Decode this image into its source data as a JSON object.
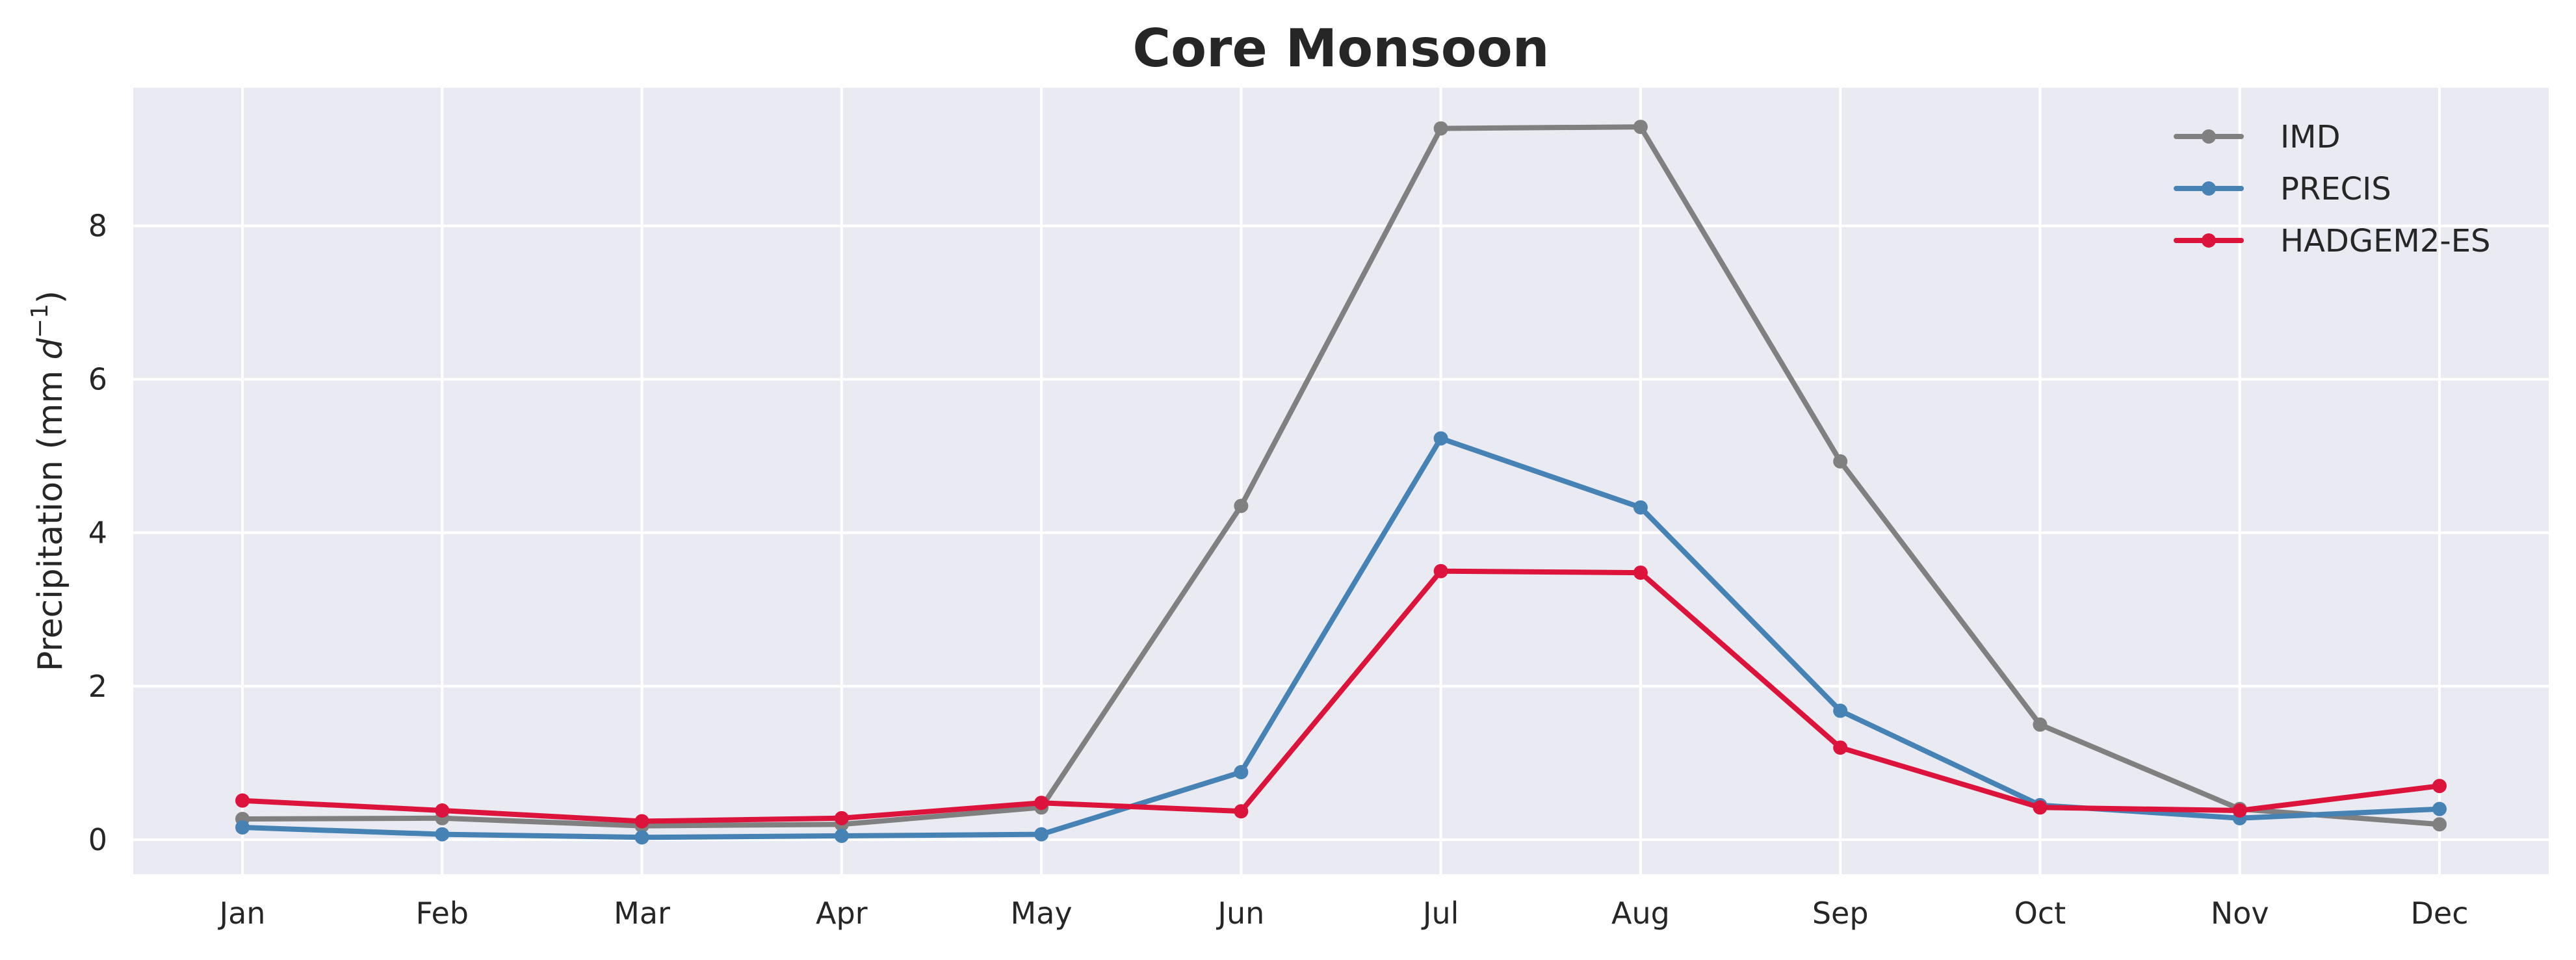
{
  "chart_data": {
    "type": "line",
    "title": "Core Monsoon",
    "xlabel": "",
    "ylabel": "Precipitation (mm d⁻¹)",
    "ylabel_base": "Precipitation (mm ",
    "ylabel_var": "d",
    "ylabel_exp": "−1",
    "ylabel_close": ")",
    "categories": [
      "Jan",
      "Feb",
      "Mar",
      "Apr",
      "May",
      "Jun",
      "Jul",
      "Aug",
      "Sep",
      "Oct",
      "Nov",
      "Dec"
    ],
    "ylim": [
      -0.45,
      9.8
    ],
    "yticks": [
      0,
      2,
      4,
      6,
      8
    ],
    "grid": true,
    "legend_position": "top-right",
    "series": [
      {
        "name": "IMD",
        "color": "#808080",
        "values": [
          0.27,
          0.28,
          0.18,
          0.2,
          0.42,
          4.35,
          9.27,
          9.29,
          4.93,
          1.5,
          0.4,
          0.2
        ]
      },
      {
        "name": "PRECIS",
        "color": "#4682B4",
        "values": [
          0.16,
          0.07,
          0.03,
          0.05,
          0.07,
          0.88,
          5.23,
          4.33,
          1.68,
          0.45,
          0.28,
          0.4
        ]
      },
      {
        "name": "HADGEM2-ES",
        "color": "#DC143C",
        "values": [
          0.51,
          0.38,
          0.24,
          0.28,
          0.48,
          0.37,
          3.5,
          3.48,
          1.2,
          0.42,
          0.38,
          0.7
        ]
      }
    ]
  }
}
